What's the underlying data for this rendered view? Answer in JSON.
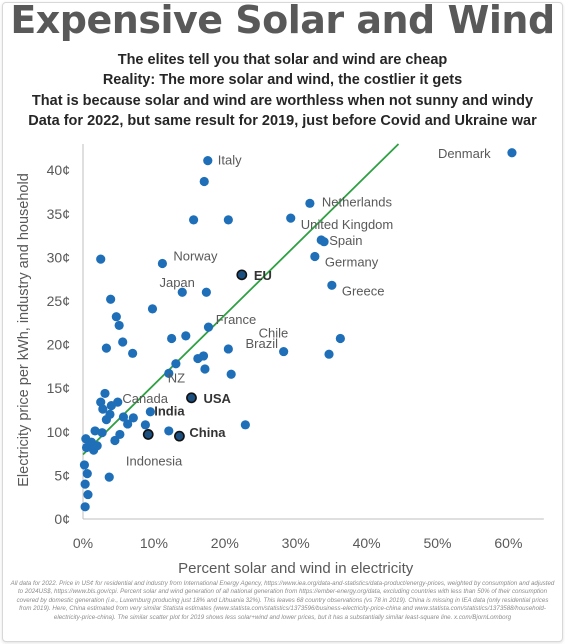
{
  "title": "Expensive Solar and Wind",
  "subtitles": [
    "The elites tell you that solar and wind are cheap",
    "Reality: The more solar and wind, the costlier it gets",
    "That is because solar and wind are worthless when not sunny and windy",
    "Data for 2022, but same result for 2019, just before Covid and Ukraine war"
  ],
  "footnote": "All data for 2022. Price in US¢ for residential and industry from International Energy Agency, https://www.iea.org/data-and-statistics/data-product/energy-prices, weighted by consumption and adjusted to 2024US$, https://www.bls.gov/cpi. Percent solar and wind generation of all national generation from https://ember-energy.org/data, excluding countries with less than 50% of their consumption covered by domestic generation (i.e., Luxemburg producing just 18% and Lithuania 32%). This leaves 68 country observations (vs 78 in 2019). China is missing in IEA data (only residential prices from 2019). Here, China estimated from very similar Statista estimates (www.statista.com/statistics/1373596/business-electricity-price-china and www.statista.com/statistics/1373588/household-electricity-price-china). The similar scatter plot for 2019 shows less solar+wind and lower prices, but it has a substantially similar least-square line. x.com/BjornLomborg",
  "chart_data": {
    "type": "scatter",
    "xlabel": "Percent solar and wind in electricity",
    "ylabel": "Electricity price per kWh, industry and household",
    "xlim": [
      0,
      0.65
    ],
    "ylim": [
      0,
      43
    ],
    "x_ticks": [
      "0%",
      "10%",
      "20%",
      "30%",
      "40%",
      "50%",
      "60%"
    ],
    "x_tick_values": [
      0,
      0.1,
      0.2,
      0.3,
      0.4,
      0.5,
      0.6
    ],
    "y_ticks": [
      "0¢",
      "5¢",
      "10¢",
      "15¢",
      "20¢",
      "25¢",
      "30¢",
      "35¢",
      "40¢"
    ],
    "y_tick_values": [
      0,
      5,
      10,
      15,
      20,
      25,
      30,
      35,
      40
    ],
    "grid": false,
    "colors": {
      "point": "#1f6fb8",
      "highlight_point": "#1b4f80",
      "trend": "#2ea043",
      "axis": "#bfbfbf",
      "text": "#595959"
    },
    "trendline": {
      "x": [
        0,
        0.445
      ],
      "y": [
        7.4,
        43.0
      ]
    },
    "points": [
      {
        "x": 0.605,
        "y": 42.0,
        "label": "Denmark",
        "bold": false
      },
      {
        "x": 0.176,
        "y": 41.1,
        "label": "Italy",
        "bold": false
      },
      {
        "x": 0.32,
        "y": 36.2,
        "label": "Netherlands",
        "bold": false
      },
      {
        "x": 0.293,
        "y": 34.5,
        "label": "United Kingdom",
        "bold": false
      },
      {
        "x": 0.336,
        "y": 32.0,
        "label": "Spain",
        "bold": false
      },
      {
        "x": 0.327,
        "y": 30.1,
        "label": "Germany",
        "bold": false
      },
      {
        "x": 0.224,
        "y": 28.0,
        "label": "EU",
        "bold": true
      },
      {
        "x": 0.351,
        "y": 26.8,
        "label": "Greece",
        "bold": false
      },
      {
        "x": 0.283,
        "y": 19.2,
        "label": "Chile",
        "bold": false
      },
      {
        "x": 0.121,
        "y": 16.7,
        "label": "NZ",
        "bold": false
      },
      {
        "x": 0.153,
        "y": 13.9,
        "label": "USA",
        "bold": true
      },
      {
        "x": 0.092,
        "y": 9.7,
        "label": "India",
        "bold": true
      },
      {
        "x": 0.136,
        "y": 9.5,
        "label": "China",
        "bold": true
      },
      {
        "x": 0.045,
        "y": 9.0,
        "label": "Indonesia",
        "bold": false
      },
      {
        "x": 0.112,
        "y": 29.3,
        "label": "Norway",
        "bold": false
      },
      {
        "x": 0.098,
        "y": 24.1,
        "label": "Japan",
        "bold": false
      },
      {
        "x": 0.145,
        "y": 21.0,
        "label": "France",
        "bold": false
      },
      {
        "x": 0.17,
        "y": 18.7,
        "label": "Brazil",
        "bold": false
      },
      {
        "x": 0.057,
        "y": 11.7,
        "label": "Canada",
        "bold": false
      },
      {
        "x": 0.171,
        "y": 38.7,
        "label": ""
      },
      {
        "x": 0.156,
        "y": 34.3,
        "label": ""
      },
      {
        "x": 0.205,
        "y": 34.3,
        "label": ""
      },
      {
        "x": 0.34,
        "y": 31.8,
        "label": ""
      },
      {
        "x": 0.025,
        "y": 29.8,
        "label": ""
      },
      {
        "x": 0.14,
        "y": 26.0,
        "label": ""
      },
      {
        "x": 0.174,
        "y": 26.0,
        "label": ""
      },
      {
        "x": 0.039,
        "y": 25.2,
        "label": ""
      },
      {
        "x": 0.047,
        "y": 23.2,
        "label": ""
      },
      {
        "x": 0.051,
        "y": 22.2,
        "label": ""
      },
      {
        "x": 0.177,
        "y": 22.0,
        "label": ""
      },
      {
        "x": 0.125,
        "y": 20.7,
        "label": ""
      },
      {
        "x": 0.056,
        "y": 20.3,
        "label": ""
      },
      {
        "x": 0.033,
        "y": 19.6,
        "label": ""
      },
      {
        "x": 0.205,
        "y": 19.5,
        "label": ""
      },
      {
        "x": 0.363,
        "y": 20.7,
        "label": ""
      },
      {
        "x": 0.07,
        "y": 19.0,
        "label": ""
      },
      {
        "x": 0.347,
        "y": 18.9,
        "label": ""
      },
      {
        "x": 0.162,
        "y": 18.4,
        "label": ""
      },
      {
        "x": 0.131,
        "y": 17.8,
        "label": ""
      },
      {
        "x": 0.172,
        "y": 17.2,
        "label": ""
      },
      {
        "x": 0.209,
        "y": 16.6,
        "label": ""
      },
      {
        "x": 0.031,
        "y": 14.4,
        "label": ""
      },
      {
        "x": 0.025,
        "y": 13.4,
        "label": ""
      },
      {
        "x": 0.04,
        "y": 13.0,
        "label": ""
      },
      {
        "x": 0.049,
        "y": 13.4,
        "label": ""
      },
      {
        "x": 0.028,
        "y": 12.6,
        "label": ""
      },
      {
        "x": 0.038,
        "y": 12.0,
        "label": ""
      },
      {
        "x": 0.095,
        "y": 12.3,
        "label": ""
      },
      {
        "x": 0.071,
        "y": 11.6,
        "label": ""
      },
      {
        "x": 0.033,
        "y": 11.4,
        "label": ""
      },
      {
        "x": 0.088,
        "y": 10.8,
        "label": ""
      },
      {
        "x": 0.229,
        "y": 10.8,
        "label": ""
      },
      {
        "x": 0.063,
        "y": 10.9,
        "label": ""
      },
      {
        "x": 0.017,
        "y": 10.1,
        "label": ""
      },
      {
        "x": 0.027,
        "y": 9.9,
        "label": ""
      },
      {
        "x": 0.052,
        "y": 9.7,
        "label": ""
      },
      {
        "x": 0.121,
        "y": 10.1,
        "label": ""
      },
      {
        "x": 0.004,
        "y": 9.2,
        "label": ""
      },
      {
        "x": 0.012,
        "y": 8.8,
        "label": ""
      },
      {
        "x": 0.005,
        "y": 8.2,
        "label": ""
      },
      {
        "x": 0.015,
        "y": 7.9,
        "label": ""
      },
      {
        "x": 0.02,
        "y": 8.4,
        "label": ""
      },
      {
        "x": 0.002,
        "y": 6.2,
        "label": ""
      },
      {
        "x": 0.006,
        "y": 5.2,
        "label": ""
      },
      {
        "x": 0.037,
        "y": 4.8,
        "label": ""
      },
      {
        "x": 0.003,
        "y": 4.0,
        "label": ""
      },
      {
        "x": 0.007,
        "y": 2.8,
        "label": ""
      },
      {
        "x": 0.003,
        "y": 1.4,
        "label": ""
      }
    ]
  }
}
